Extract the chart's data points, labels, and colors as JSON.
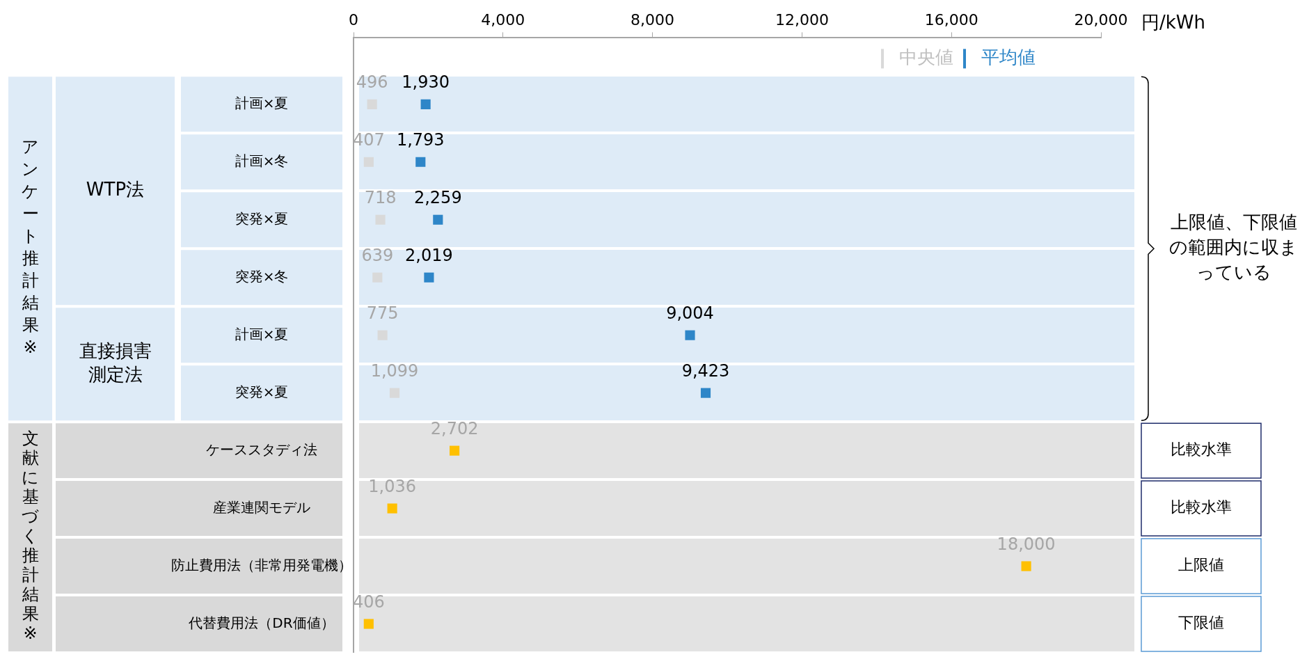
{
  "chart_data": {
    "type": "scatter",
    "orientation": "horizontal",
    "xlabel": "円/kWh",
    "marker": "square",
    "categories": [
      "計画×夏",
      "計画×冬",
      "突発×夏",
      "突発×冬",
      "計画×夏",
      "突発×夏",
      "ケーススタディ法",
      "産業連関モデル",
      "防止費用法（非常用発電機）",
      "代替費用法（DR価値）"
    ],
    "series": [
      {
        "name": "中央値",
        "color": "#d9d9d9",
        "values": [
          496,
          407,
          718,
          639,
          775,
          1099,
          null,
          null,
          null,
          null
        ],
        "value_labels": [
          "496",
          "407",
          "718",
          "639",
          "775",
          "1,099",
          null,
          null,
          null,
          null
        ]
      },
      {
        "name": "平均値",
        "color": "#2e86c8",
        "values": [
          1930,
          1793,
          2259,
          2019,
          9004,
          9423,
          null,
          null,
          null,
          null
        ],
        "value_labels": [
          "1,930",
          "1,793",
          "2,259",
          "2,019",
          "9,004",
          "9,423",
          null,
          null,
          null,
          null
        ]
      },
      {
        "color": "#ffc000",
        "values": [
          null,
          null,
          null,
          null,
          null,
          null,
          2702,
          1036,
          18000,
          406
        ],
        "value_labels": [
          null,
          null,
          null,
          null,
          null,
          null,
          "2,702",
          "1,036",
          "18,000",
          "406"
        ]
      }
    ],
    "xlim": [
      0,
      20000
    ],
    "xticks": [
      0,
      {
        "value": 4000,
        "label": "4,000"
      },
      {
        "value": 8000,
        "label": "8,000"
      },
      {
        "value": 12000,
        "label": "12,000"
      },
      {
        "value": 16000,
        "label": "16,000"
      },
      {
        "value": 20000,
        "label": "20,000"
      }
    ],
    "legend": "top right",
    "annotations": [
      "アンケート推計結果※",
      "WTP法",
      "直接損害測定法",
      "文献に基づく推計結果※",
      "上限値、下限値の範囲内に収まっている",
      "比較水準",
      "比較水準",
      "上限値",
      "下限値"
    ]
  }
}
